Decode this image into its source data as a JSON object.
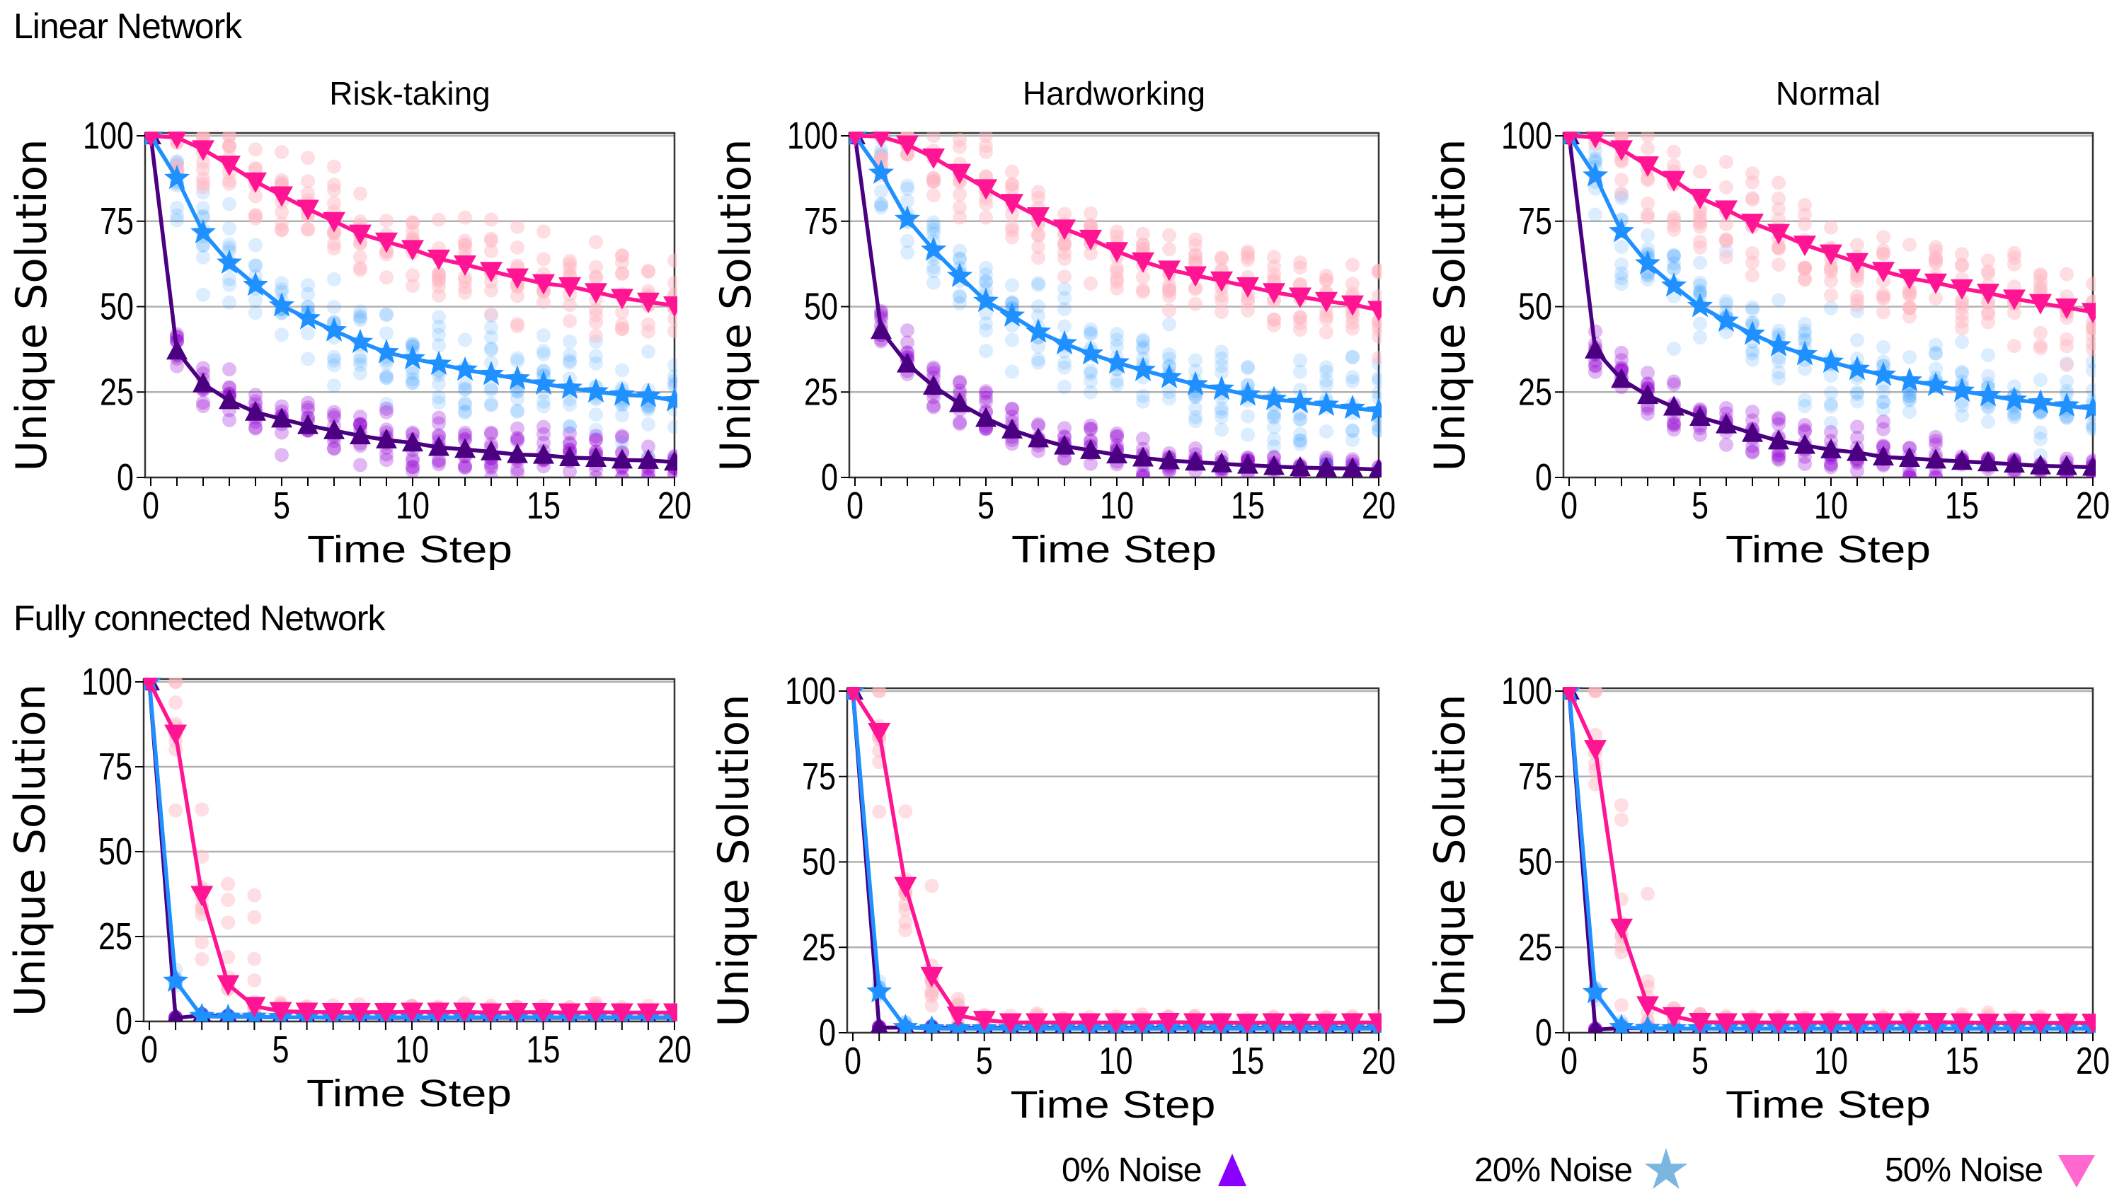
{
  "sections": {
    "linear": "Linear Network",
    "fully_connected": "Fully connected Network"
  },
  "legend": [
    {
      "label": "0% Noise",
      "marker": "triangle-up",
      "color": "#8a00ff"
    },
    {
      "label": "20% Noise",
      "marker": "star",
      "color": "#7ab6e0"
    },
    {
      "label": "50% Noise",
      "marker": "triangle-down",
      "color": "#ff69cf"
    }
  ],
  "colors": {
    "noise_0_line": "#4b0082",
    "noise_0_scatter": "#9400d3",
    "noise_20_line": "#1e90ff",
    "noise_20_scatter": "#1e90ff",
    "noise_50_line": "#ff1493",
    "noise_50_scatter": "#ffb6c1",
    "grid": "#b0b0b0"
  },
  "chart_data": [
    {
      "type": "line",
      "row": "Linear Network",
      "title": "Risk-taking",
      "xlabel": "Time Step",
      "ylabel": "Unique Solution",
      "xlim": [
        0,
        20
      ],
      "ylim": [
        0,
        100
      ],
      "xticks": [
        0,
        5,
        10,
        15,
        20
      ],
      "yticks": [
        0,
        25,
        50,
        75,
        100
      ],
      "grid": "horizontal",
      "x": [
        0,
        1,
        2,
        3,
        4,
        5,
        6,
        7,
        8,
        9,
        10,
        11,
        12,
        13,
        14,
        15,
        16,
        17,
        18,
        19,
        20
      ],
      "series": [
        {
          "name": "0% Noise",
          "marker": "triangle-up",
          "scatter_spread": 4,
          "values": [
            100,
            37,
            27.4,
            22.5,
            19.1,
            17.1,
            15.2,
            13.7,
            12.2,
            11,
            10.1,
            8.8,
            8.2,
            7.5,
            6.7,
            6.5,
            5.8,
            5.6,
            5.1,
            5,
            4.5
          ]
        },
        {
          "name": "20% Noise",
          "marker": "star",
          "scatter_spread": 7,
          "values": [
            100,
            87.6,
            71.7,
            62.8,
            56.3,
            50.3,
            46.5,
            43,
            39.6,
            36.6,
            34.8,
            33.2,
            31.5,
            30.2,
            28.9,
            27.4,
            26.2,
            25.1,
            24.2,
            23.8,
            22.5
          ]
        },
        {
          "name": "50% Noise",
          "marker": "triangle-down",
          "scatter_spread": 7,
          "values": [
            100,
            99.5,
            96,
            91.5,
            86.6,
            82.5,
            78.6,
            75,
            71.3,
            69,
            66.8,
            64,
            62.3,
            60.4,
            58.5,
            56.8,
            55.9,
            54.2,
            52.5,
            51.4,
            50.3
          ]
        }
      ]
    },
    {
      "type": "line",
      "row": "Linear Network",
      "title": "Hardworking",
      "xlabel": "Time Step",
      "ylabel": "Unique Solution",
      "xlim": [
        0,
        20
      ],
      "ylim": [
        0,
        100
      ],
      "xticks": [
        0,
        5,
        10,
        15,
        20
      ],
      "yticks": [
        0,
        25,
        50,
        75,
        100
      ],
      "grid": "horizontal",
      "x": [
        0,
        1,
        2,
        3,
        4,
        5,
        6,
        7,
        8,
        9,
        10,
        11,
        12,
        13,
        14,
        15,
        16,
        17,
        18,
        19,
        20
      ],
      "series": [
        {
          "name": "0% Noise",
          "marker": "triangle-up",
          "scatter_spread": 4,
          "values": [
            100,
            43,
            33.2,
            26.7,
            21.6,
            17.3,
            13.9,
            11.3,
            9.2,
            7.9,
            6.6,
            5.7,
            4.9,
            4.5,
            4,
            3.6,
            3.2,
            2.9,
            2.7,
            2.6,
            2.3
          ]
        },
        {
          "name": "20% Noise",
          "marker": "star",
          "scatter_spread": 7,
          "values": [
            100,
            89.1,
            75.6,
            66.6,
            58.9,
            51.6,
            47.3,
            42.6,
            39.2,
            36.2,
            33.6,
            31.4,
            29.3,
            27.2,
            25.9,
            24.2,
            22.9,
            22,
            21.2,
            20.3,
            19.5
          ]
        },
        {
          "name": "50% Noise",
          "marker": "triangle-down",
          "scatter_spread": 7,
          "values": [
            100,
            99.8,
            97.4,
            93.6,
            89.1,
            84.6,
            80.3,
            76.4,
            72.8,
            69.8,
            66.2,
            63.2,
            60.8,
            59.1,
            57.6,
            55.9,
            54.2,
            52.9,
            51.6,
            50.6,
            49
          ]
        }
      ]
    },
    {
      "type": "line",
      "row": "Linear Network",
      "title": "Normal",
      "xlabel": "Time Step",
      "ylabel": "Unique Solution",
      "xlim": [
        0,
        20
      ],
      "ylim": [
        0,
        100
      ],
      "xticks": [
        0,
        5,
        10,
        15,
        20
      ],
      "yticks": [
        0,
        25,
        50,
        75,
        100
      ],
      "grid": "horizontal",
      "x": [
        0,
        1,
        2,
        3,
        4,
        5,
        6,
        7,
        8,
        9,
        10,
        11,
        12,
        13,
        14,
        15,
        16,
        17,
        18,
        19,
        20
      ],
      "series": [
        {
          "name": "0% Noise",
          "marker": "triangle-up",
          "scatter_spread": 4,
          "values": [
            100,
            37.3,
            28.7,
            24,
            20.6,
            17.6,
            15.4,
            12.9,
            10.7,
            9.4,
            8.1,
            7.3,
            6,
            5.6,
            5.1,
            4.7,
            4.3,
            3.9,
            3.4,
            3.2,
            3
          ]
        },
        {
          "name": "20% Noise",
          "marker": "star",
          "scatter_spread": 7,
          "values": [
            100,
            88.3,
            72,
            62.6,
            56.1,
            50.1,
            45.8,
            42,
            38.6,
            36,
            33.8,
            31.7,
            30,
            28.3,
            27,
            25.3,
            24,
            22.7,
            21.9,
            21,
            20.1
          ]
        },
        {
          "name": "50% Noise",
          "marker": "triangle-down",
          "scatter_spread": 7,
          "values": [
            100,
            99.6,
            96,
            91.3,
            87,
            81.8,
            78.4,
            74.5,
            71.5,
            68.1,
            65.5,
            63,
            60.4,
            58.3,
            57,
            55.3,
            54,
            52.3,
            51,
            49.7,
            48.4
          ]
        }
      ]
    },
    {
      "type": "line",
      "row": "Fully connected Network",
      "title": "Risk-taking",
      "xlabel": "Time Step",
      "ylabel": "Unique Solution",
      "xlim": [
        0,
        20
      ],
      "ylim": [
        0,
        100
      ],
      "xticks": [
        0,
        5,
        10,
        15,
        20
      ],
      "yticks": [
        0,
        25,
        50,
        75,
        100
      ],
      "grid": "horizontal",
      "x": [
        0,
        1,
        2,
        3,
        4,
        5,
        6,
        7,
        8,
        9,
        10,
        11,
        12,
        13,
        14,
        15,
        16,
        17,
        18,
        19,
        20
      ],
      "series": [
        {
          "name": "0% Noise",
          "marker": "triangle-up",
          "scatter_spread": 0.5,
          "values": [
            100,
            1,
            1.8,
            1.5,
            1.3,
            1.2,
            1.2,
            1.1,
            1.1,
            1.1,
            1.1,
            1.1,
            1.1,
            1.1,
            1.1,
            1.1,
            1.1,
            1.1,
            1.1,
            1.1,
            1.1
          ]
        },
        {
          "name": "20% Noise",
          "marker": "star",
          "scatter_spread": 1.5,
          "values": [
            100,
            11.9,
            1.5,
            1.3,
            1.3,
            1.2,
            1.2,
            1.2,
            1.2,
            1.2,
            1.2,
            1.2,
            1.2,
            1.2,
            1.2,
            1.2,
            1.2,
            1.2,
            1.2,
            1.2,
            1.2
          ]
        },
        {
          "name": "50% Noise",
          "marker": "triangle-down",
          "scatter_spread": 3,
          "values": [
            100,
            84.7,
            37.2,
            10.9,
            4.5,
            3,
            2.8,
            2.7,
            2.7,
            2.7,
            2.8,
            2.8,
            2.8,
            2.6,
            2.7,
            2.7,
            2.6,
            2.7,
            2.6,
            2.6,
            2.6
          ]
        }
      ]
    },
    {
      "type": "line",
      "row": "Fully connected Network",
      "title": "Hardworking",
      "xlabel": "Time Step",
      "ylabel": "Unique Solution",
      "xlim": [
        0,
        20
      ],
      "ylim": [
        0,
        100
      ],
      "xticks": [
        0,
        5,
        10,
        15,
        20
      ],
      "yticks": [
        0,
        25,
        50,
        75,
        100
      ],
      "grid": "horizontal",
      "x": [
        0,
        1,
        2,
        3,
        4,
        5,
        6,
        7,
        8,
        9,
        10,
        11,
        12,
        13,
        14,
        15,
        16,
        17,
        18,
        19,
        20
      ],
      "series": [
        {
          "name": "0% Noise",
          "marker": "triangle-up",
          "scatter_spread": 0.5,
          "values": [
            100,
            1.5,
            1.5,
            1.5,
            1.4,
            1.4,
            1.4,
            1.4,
            1.4,
            1.4,
            1.4,
            1.4,
            1.4,
            1.4,
            1.4,
            1.4,
            1.4,
            1.4,
            1.4,
            1.4,
            1.4
          ]
        },
        {
          "name": "20% Noise",
          "marker": "star",
          "scatter_spread": 1.5,
          "values": [
            100,
            12,
            1.6,
            1.2,
            1.2,
            1.2,
            1.2,
            1.2,
            1.2,
            1.2,
            1.2,
            1.2,
            1.2,
            1.2,
            1.2,
            1.2,
            1.2,
            1.2,
            1.2,
            1.2,
            1.2
          ]
        },
        {
          "name": "50% Noise",
          "marker": "triangle-down",
          "scatter_spread": 3,
          "values": [
            100,
            88,
            42.9,
            16.6,
            5,
            3.7,
            3,
            3,
            3,
            3,
            3,
            3,
            3.1,
            3,
            3,
            2.9,
            3,
            2.9,
            2.9,
            3,
            3
          ]
        }
      ]
    },
    {
      "type": "line",
      "row": "Fully connected Network",
      "title": "Normal",
      "xlabel": "Time Step",
      "ylabel": "Unique Solution",
      "xlim": [
        0,
        20
      ],
      "ylim": [
        0,
        100
      ],
      "xticks": [
        0,
        5,
        10,
        15,
        20
      ],
      "yticks": [
        0,
        25,
        50,
        75,
        100
      ],
      "grid": "horizontal",
      "x": [
        0,
        1,
        2,
        3,
        4,
        5,
        6,
        7,
        8,
        9,
        10,
        11,
        12,
        13,
        14,
        15,
        16,
        17,
        18,
        19,
        20
      ],
      "series": [
        {
          "name": "0% Noise",
          "marker": "triangle-up",
          "scatter_spread": 0.5,
          "values": [
            100,
            0.9,
            1.4,
            1.3,
            1.2,
            1.2,
            1.2,
            1.2,
            1.2,
            1.2,
            1.2,
            1.2,
            1.2,
            1.2,
            1.2,
            1.2,
            1.2,
            1.2,
            1.2,
            1.2,
            1.2
          ]
        },
        {
          "name": "20% Noise",
          "marker": "star",
          "scatter_spread": 1.5,
          "values": [
            100,
            11.8,
            1.6,
            1.3,
            1.2,
            1.2,
            1.2,
            1.2,
            1.2,
            1.2,
            1.2,
            1.2,
            1.2,
            1.2,
            1.2,
            1.2,
            1.2,
            1.2,
            1.2,
            1.2,
            1.2
          ]
        },
        {
          "name": "50% Noise",
          "marker": "triangle-down",
          "scatter_spread": 3,
          "values": [
            100,
            83,
            30.7,
            8,
            4.8,
            3.1,
            3,
            3,
            3,
            3,
            3,
            3,
            3,
            3,
            3.1,
            3,
            2.9,
            2.9,
            2.9,
            2.9,
            2.9
          ]
        }
      ]
    }
  ]
}
